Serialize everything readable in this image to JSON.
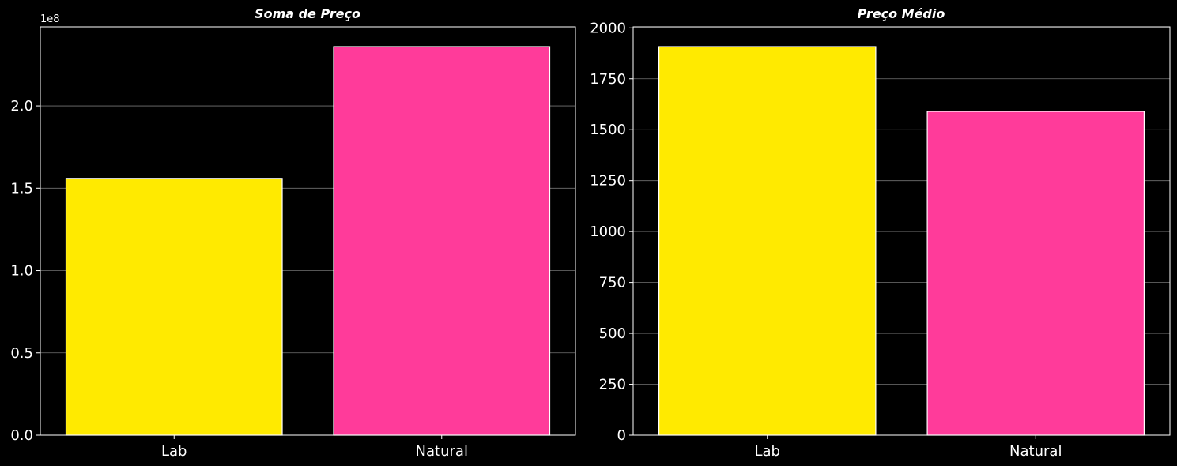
{
  "chart_data": [
    {
      "type": "bar",
      "title": "Soma de Preço",
      "categories": [
        "Lab",
        "Natural"
      ],
      "values": [
        156000000,
        236000000
      ],
      "colors": [
        "#ffea00",
        "#ff3b9a"
      ],
      "ylim": [
        0,
        248000000
      ],
      "yticks": [
        0,
        50000000,
        100000000,
        150000000,
        200000000
      ],
      "ytick_labels": [
        "0.0",
        "0.5",
        "1.0",
        "1.5",
        "2.0"
      ],
      "y_offset_label": "1e8",
      "grid": "y",
      "xlabel": "",
      "ylabel": ""
    },
    {
      "type": "bar",
      "title": "Preço Médio",
      "categories": [
        "Lab",
        "Natural"
      ],
      "values": [
        1908,
        1590
      ],
      "colors": [
        "#ffea00",
        "#ff3b9a"
      ],
      "ylim": [
        0,
        2005
      ],
      "yticks": [
        0,
        250,
        500,
        750,
        1000,
        1250,
        1500,
        1750,
        2000
      ],
      "ytick_labels": [
        "0",
        "250",
        "500",
        "750",
        "1000",
        "1250",
        "1500",
        "1750",
        "2000"
      ],
      "y_offset_label": "",
      "grid": "y",
      "xlabel": "",
      "ylabel": ""
    }
  ],
  "style": {
    "background": "#000000",
    "foreground": "#ffffff"
  }
}
